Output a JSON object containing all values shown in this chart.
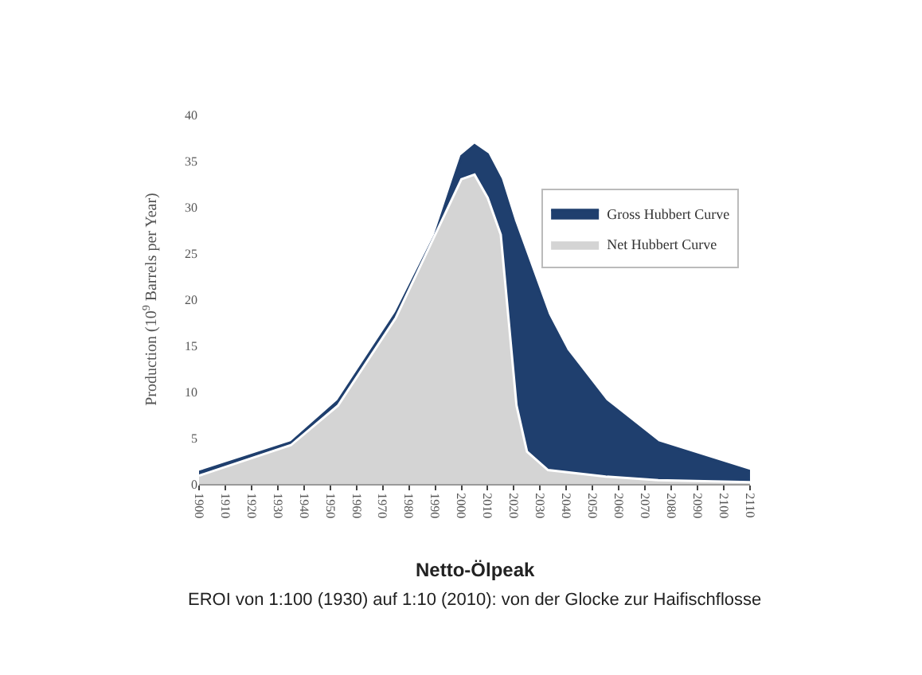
{
  "chart_data": {
    "type": "area",
    "title": "Netto-Ölpeak",
    "subtitle": "EROI von 1:100 (1930) auf 1:10 (2010): von der Glocke zur Haifischflosse",
    "ylabel": "Production (10$^{9}$ Barrels per Year)",
    "series": [
      {
        "name": "Gross Hubbert Curve",
        "color": "#1f3f6e",
        "x": [
          1900,
          1935,
          1953,
          1975,
          1990,
          1997,
          2000,
          2005,
          2010,
          2015,
          2020,
          2033,
          2040,
          2055,
          2075,
          2110
        ],
        "values": [
          1.3,
          4.5,
          9,
          18.5,
          27,
          33,
          35.5,
          36.7,
          35.7,
          33,
          28.5,
          18.3,
          14.5,
          9,
          4.5,
          1.4
        ]
      },
      {
        "name": "Net Hubbert Curve",
        "color": "#d4d4d4",
        "x": [
          1900,
          1935,
          1953,
          1975,
          1990,
          2000,
          2005,
          2010,
          2015,
          2021,
          2025,
          2033,
          2055,
          2075,
          2110
        ],
        "values": [
          0.9,
          4.2,
          8.5,
          18,
          27,
          33,
          33.5,
          31,
          27,
          8.5,
          3.5,
          1.5,
          0.8,
          0.4,
          0.2
        ]
      }
    ],
    "xlim": [
      1900,
      2110
    ],
    "xticks": [
      1900,
      1910,
      1920,
      1930,
      1940,
      1950,
      1960,
      1970,
      1980,
      1990,
      2000,
      2010,
      2020,
      2030,
      2040,
      2050,
      2060,
      2070,
      2080,
      2090,
      2100,
      2110
    ],
    "ylim": [
      0,
      40
    ],
    "yticks": [
      0,
      5,
      10,
      15,
      20,
      25,
      30,
      35,
      40
    ],
    "legend": "top right"
  }
}
